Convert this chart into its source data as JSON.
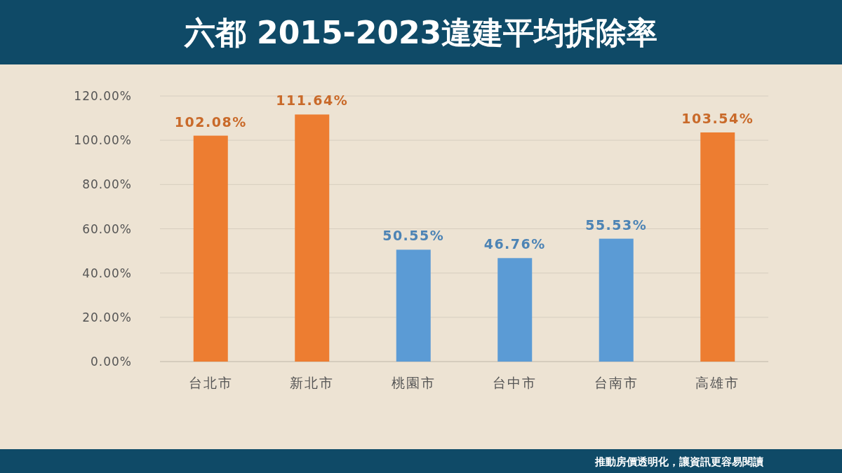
{
  "chart_data": {
    "type": "bar",
    "title": "六都 2015-2023違建平均拆除率",
    "categories": [
      "台北市",
      "新北市",
      "桃園市",
      "台中市",
      "台南市",
      "高雄市"
    ],
    "values": [
      102.08,
      111.64,
      50.55,
      46.76,
      55.53,
      103.54
    ],
    "colors": [
      "#ed7d31",
      "#ed7d31",
      "#5b9bd5",
      "#5b9bd5",
      "#5b9bd5",
      "#ed7d31"
    ],
    "value_labels": [
      "102.08%",
      "111.64%",
      "50.55%",
      "46.76%",
      "55.53%",
      "103.54%"
    ],
    "ylim": [
      0,
      120
    ],
    "yticks": [
      {
        "value": 0,
        "label": "0.00%"
      },
      {
        "value": 20,
        "label": "20.00%"
      },
      {
        "value": 40,
        "label": "40.00%"
      },
      {
        "value": 60,
        "label": "60.00%"
      },
      {
        "value": 80,
        "label": "80.00%"
      },
      {
        "value": 100,
        "label": "100.00%"
      },
      {
        "value": 120,
        "label": "120.00%"
      }
    ],
    "grid": "y",
    "annotations": [
      "推動房價透明化，讓資訊更容易閱讀"
    ]
  }
}
